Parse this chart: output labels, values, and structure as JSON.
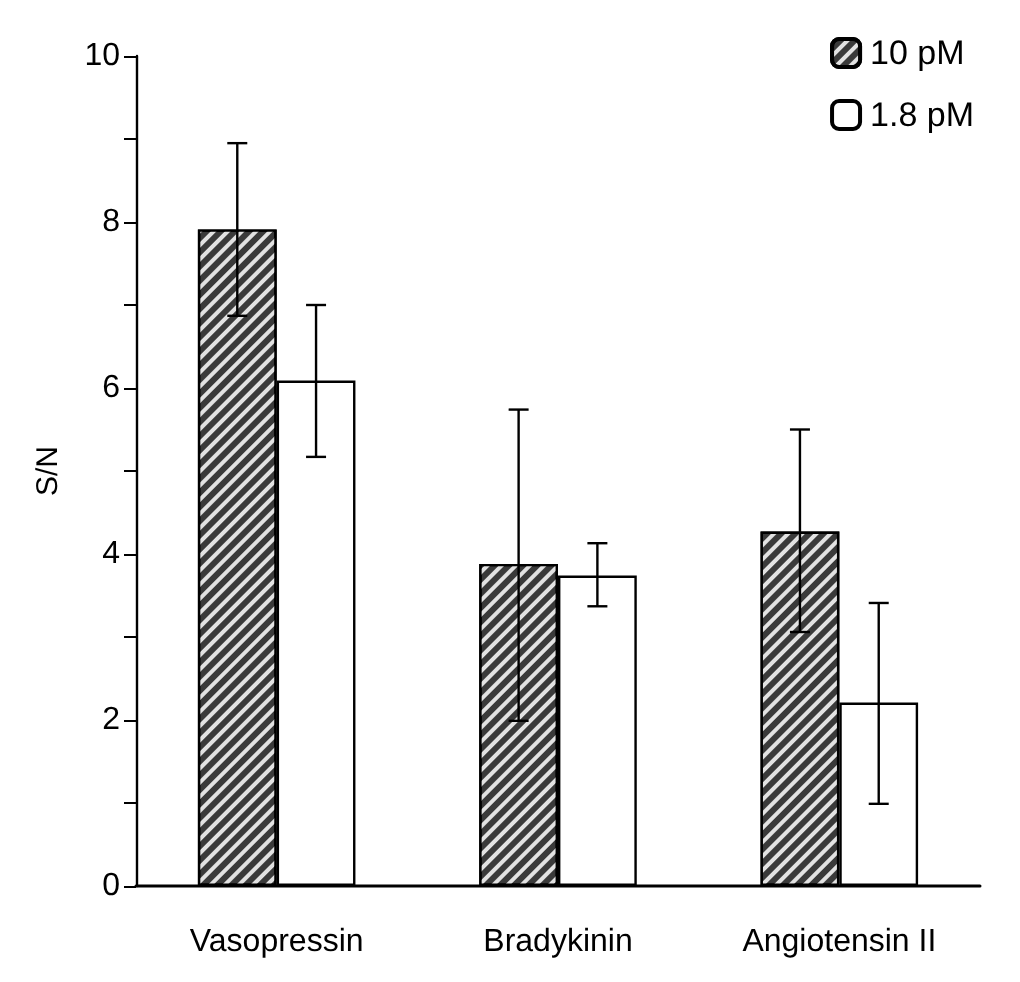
{
  "chart_data": {
    "type": "bar",
    "ylabel": "S/N",
    "categories": [
      "Vasopressin",
      "Bradykinin",
      "Angiotensin II"
    ],
    "series": [
      {
        "name": "10 pM",
        "color": "#3a3a3a",
        "values": [
          7.91,
          3.88,
          4.27
        ],
        "errors": [
          [
            6.87,
            8.95
          ],
          [
            1.99,
            5.74
          ],
          [
            3.06,
            5.5
          ]
        ]
      },
      {
        "name": "1.8 pM",
        "color": "#ffffff",
        "values": [
          6.09,
          3.74,
          2.21
        ],
        "errors": [
          [
            5.17,
            7.0
          ],
          [
            3.37,
            4.13
          ],
          [
            0.99,
            3.41
          ]
        ]
      }
    ],
    "ylim": [
      0,
      10
    ],
    "yticks": [
      0,
      {
        "value": 1,
        "label": null
      },
      2,
      {
        "value": 3,
        "label": null
      },
      4,
      {
        "value": 5,
        "label": null
      },
      6,
      {
        "value": 7,
        "label": null
      },
      8,
      {
        "value": 9,
        "label": null
      },
      10
    ],
    "grid": false,
    "legend": "top right"
  }
}
